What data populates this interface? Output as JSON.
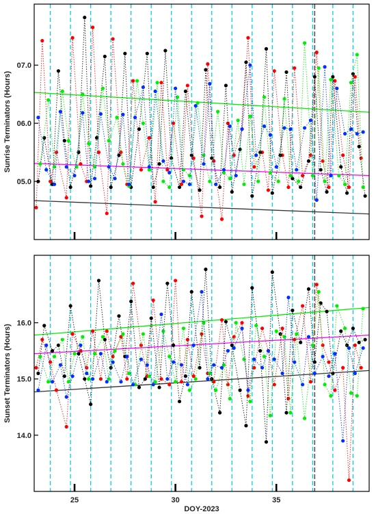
{
  "chart_data": [
    {
      "type": "scatter",
      "ylabel": "Sunrise Terminators (Hours)",
      "xlabel": "",
      "ylim": [
        4.0,
        8.05
      ],
      "xlim": [
        23.0,
        39.6
      ],
      "yticks": [
        5.0,
        6.0,
        7.0
      ],
      "ytick_labels": [
        "05.0",
        "06.0",
        "07.0"
      ],
      "xticks": [
        25,
        30,
        35
      ],
      "xtick_labels": [
        "",
        "",
        ""
      ],
      "colors": {
        "red": "#ff0000",
        "black": "#000000",
        "green": "#00ee00",
        "blue": "#0030ff"
      },
      "day_lines": [
        23.8,
        24.8,
        25.8,
        26.8,
        27.8,
        28.8,
        29.8,
        30.8,
        31.8,
        32.8,
        33.8,
        34.8,
        35.8,
        36.8,
        37.8,
        38.8
      ],
      "gray_line_x": 36.9,
      "trend_lines": [
        {
          "color": "#00ee00",
          "x": [
            23.0,
            39.6
          ],
          "y": [
            6.53,
            6.19
          ]
        },
        {
          "color": "#ff00ff",
          "x": [
            23.0,
            39.6
          ],
          "y": [
            5.31,
            5.1
          ]
        },
        {
          "color": "#333333",
          "x": [
            23.0,
            39.6
          ],
          "y": [
            4.67,
            4.44
          ]
        }
      ],
      "series": [
        {
          "color": "#ff0000",
          "x": [
            23.1,
            23.4,
            23.8,
            24.1,
            24.6,
            24.9,
            25.3,
            25.6,
            25.9,
            26.2,
            26.6,
            26.9,
            27.3,
            27.6,
            27.9,
            28.3,
            28.7,
            29.0,
            29.3,
            29.6,
            29.9,
            30.3,
            30.6,
            30.9,
            31.3,
            31.6,
            31.9,
            32.3,
            32.6,
            32.9,
            33.3,
            33.6,
            33.9,
            34.3,
            34.6,
            34.9,
            35.3,
            35.6,
            35.9,
            36.3,
            36.7,
            37.0,
            37.3,
            37.6,
            37.9,
            38.3,
            38.6,
            38.9,
            39.2
          ],
          "y": [
            4.55,
            7.42,
            5.0,
            5.5,
            4.72,
            7.47,
            5.3,
            5.0,
            7.65,
            5.5,
            4.45,
            7.45,
            5.5,
            4.95,
            6.73,
            5.2,
            5.75,
            4.65,
            6.7,
            5.2,
            6.0,
            4.95,
            6.65,
            5.4,
            4.4,
            7.02,
            5.35,
            4.35,
            6.0,
            5.45,
            5.9,
            7.47,
            5.25,
            5.5,
            4.85,
            6.9,
            5.45,
            4.9,
            6.95,
            5.1,
            5.45,
            7.22,
            5.35,
            4.9,
            6.73,
            5.45,
            4.9,
            6.8,
            5.4
          ]
        },
        {
          "color": "#000000",
          "x": [
            23.2,
            23.5,
            23.9,
            24.2,
            24.5,
            24.8,
            25.2,
            25.5,
            25.8,
            26.1,
            26.5,
            26.8,
            27.2,
            27.5,
            27.8,
            28.2,
            28.6,
            28.9,
            29.2,
            29.5,
            29.8,
            30.2,
            30.5,
            30.8,
            31.2,
            31.5,
            31.8,
            32.2,
            32.5,
            32.8,
            33.2,
            33.5,
            33.8,
            34.2,
            34.5,
            34.8,
            35.2,
            35.5,
            35.8,
            36.2,
            36.6,
            36.9,
            37.2,
            37.5,
            37.8,
            38.2,
            38.5,
            38.8,
            39.1,
            39.4
          ],
          "y": [
            5.0,
            5.75,
            4.95,
            6.9,
            5.7,
            4.9,
            5.5,
            7.82,
            4.92,
            5.75,
            7.15,
            4.9,
            5.45,
            7.2,
            4.9,
            5.9,
            7.2,
            4.9,
            5.3,
            7.25,
            5.4,
            4.9,
            6.55,
            5.45,
            4.85,
            6.92,
            5.4,
            4.9,
            6.65,
            4.82,
            5.55,
            7.05,
            4.75,
            5.5,
            7.28,
            4.8,
            5.45,
            6.88,
            5.05,
            4.9,
            5.35,
            6.8,
            5.2,
            4.82,
            6.8,
            5.25,
            4.8,
            6.85,
            5.6,
            4.75
          ]
        },
        {
          "color": "#00ee00",
          "x": [
            23.3,
            23.7,
            24.0,
            24.4,
            24.7,
            25.1,
            25.4,
            25.7,
            26.0,
            26.4,
            26.7,
            27.1,
            27.4,
            27.7,
            28.1,
            28.4,
            28.7,
            29.1,
            29.4,
            29.7,
            30.1,
            30.4,
            30.7,
            31.1,
            31.4,
            31.7,
            32.1,
            32.4,
            32.7,
            33.1,
            33.4,
            33.7,
            34.1,
            34.4,
            34.7,
            35.1,
            35.4,
            35.7,
            36.1,
            36.4,
            36.8,
            37.1,
            37.4,
            37.7,
            38.1,
            38.4,
            38.7,
            39.0,
            39.3
          ],
          "y": [
            5.3,
            6.4,
            5.25,
            6.55,
            5.7,
            5.25,
            6.5,
            5.65,
            5.25,
            6.6,
            5.7,
            6.1,
            5.3,
            4.92,
            6.73,
            6.0,
            5.2,
            6.7,
            5.0,
            4.9,
            6.45,
            5.2,
            5.1,
            6.35,
            5.45,
            5.0,
            6.2,
            5.15,
            5.05,
            6.05,
            4.95,
            6.12,
            5.0,
            6.45,
            5.15,
            5.0,
            6.42,
            5.1,
            5.0,
            7.38,
            5.1,
            6.95,
            5.0,
            6.75,
            5.1,
            4.95,
            6.7,
            7.18,
            4.9
          ]
        },
        {
          "color": "#0030ff",
          "x": [
            23.2,
            23.6,
            24.0,
            24.3,
            24.6,
            25.0,
            25.4,
            25.7,
            26.0,
            26.3,
            26.7,
            27.0,
            27.4,
            27.7,
            28.0,
            28.4,
            28.7,
            29.0,
            29.4,
            29.7,
            30.0,
            30.4,
            30.7,
            31.0,
            31.4,
            31.7,
            32.0,
            32.4,
            32.7,
            33.0,
            33.3,
            33.7,
            34.0,
            34.4,
            34.7,
            35.0,
            35.4,
            35.7,
            36.0,
            36.4,
            36.7,
            37.0,
            37.4,
            37.7,
            38.0,
            38.4,
            38.7,
            39.0,
            39.3
          ],
          "y": [
            6.1,
            5.2,
            4.95,
            6.2,
            5.25,
            5.1,
            6.18,
            5.0,
            5.05,
            6.16,
            5.25,
            5.05,
            6.15,
            4.95,
            6.1,
            6.62,
            5.25,
            6.55,
            5.35,
            5.15,
            6.6,
            5.0,
            4.95,
            6.3,
            5.3,
            6.68,
            4.95,
            5.2,
            5.95,
            5.1,
            5.9,
            7.0,
            5.45,
            5.95,
            5.8,
            5.25,
            5.92,
            5.9,
            5.2,
            5.92,
            6.05,
            4.68,
            6.97,
            5.1,
            6.6,
            5.82,
            5.9,
            5.82,
            5.85
          ]
        }
      ]
    },
    {
      "type": "scatter",
      "ylabel": "Sunset Terminators (Hours)",
      "xlabel": "DOY-2023",
      "ylim": [
        13.0,
        17.2
      ],
      "xlim": [
        23.0,
        39.6
      ],
      "yticks": [
        14.0,
        15.0,
        16.0
      ],
      "ytick_labels": [
        "14.0",
        "15.0",
        "16.0"
      ],
      "xticks": [
        25,
        30,
        35
      ],
      "xtick_labels": [
        "25",
        "30",
        "35"
      ],
      "colors": {
        "red": "#ff0000",
        "black": "#000000",
        "green": "#00ee00",
        "blue": "#0030ff"
      },
      "day_lines": [
        23.8,
        24.8,
        25.8,
        26.8,
        27.8,
        28.8,
        29.8,
        30.8,
        31.8,
        32.8,
        33.8,
        34.8,
        35.8,
        36.8,
        37.8,
        38.8
      ],
      "gray_line_x": 36.9,
      "trend_lines": [
        {
          "color": "#00ee00",
          "x": [
            23.0,
            39.6
          ],
          "y": [
            15.78,
            16.27
          ]
        },
        {
          "color": "#ff00ff",
          "x": [
            23.0,
            39.6
          ],
          "y": [
            15.45,
            15.78
          ]
        },
        {
          "color": "#333333",
          "x": [
            23.0,
            39.6
          ],
          "y": [
            14.77,
            15.15
          ]
        }
      ],
      "series": [
        {
          "color": "#ff0000",
          "x": [
            23.1,
            23.4,
            23.8,
            24.1,
            24.6,
            24.9,
            25.3,
            25.6,
            25.9,
            26.3,
            26.6,
            26.9,
            27.3,
            27.6,
            27.9,
            28.3,
            28.6,
            28.9,
            29.3,
            29.7,
            30.0,
            30.3,
            30.6,
            30.9,
            31.3,
            31.6,
            31.9,
            32.3,
            32.6,
            32.9,
            33.3,
            33.6,
            33.9,
            34.3,
            34.6,
            34.9,
            35.3,
            35.6,
            35.9,
            36.3,
            36.7,
            37.0,
            37.3,
            37.6,
            37.9,
            38.3,
            38.6,
            38.9,
            39.2
          ],
          "y": [
            15.2,
            15.7,
            15.3,
            14.8,
            14.15,
            15.8,
            15.5,
            15.2,
            15.85,
            15.0,
            15.85,
            15.4,
            15.75,
            15.0,
            16.7,
            15.6,
            15.05,
            16.4,
            15.0,
            14.9,
            16.75,
            14.95,
            15.7,
            15.05,
            15.8,
            15.1,
            14.95,
            16.05,
            14.9,
            15.75,
            16.0,
            14.7,
            15.2,
            15.9,
            15.5,
            14.9,
            15.9,
            14.65,
            15.7,
            16.3,
            14.95,
            16.68,
            15.6,
            15.3,
            14.8,
            15.2,
            13.2,
            15.6,
            15.2
          ]
        },
        {
          "color": "#000000",
          "x": [
            23.2,
            23.5,
            23.9,
            24.2,
            24.5,
            24.8,
            25.2,
            25.5,
            25.8,
            26.2,
            26.5,
            26.8,
            27.2,
            27.5,
            27.8,
            28.2,
            28.5,
            28.8,
            29.2,
            29.6,
            29.9,
            30.2,
            30.5,
            30.8,
            31.2,
            31.5,
            31.8,
            32.2,
            32.5,
            32.8,
            33.2,
            33.5,
            33.8,
            34.2,
            34.5,
            34.8,
            35.2,
            35.5,
            35.8,
            36.2,
            36.6,
            36.9,
            37.2,
            37.5,
            37.8,
            38.2,
            38.5,
            38.8,
            39.1,
            39.4
          ],
          "y": [
            15.1,
            15.95,
            15.5,
            15.6,
            15.05,
            16.3,
            15.45,
            15.0,
            14.55,
            16.75,
            15.7,
            15.2,
            16.12,
            15.4,
            16.38,
            14.85,
            15.0,
            16.08,
            14.85,
            16.7,
            15.6,
            14.6,
            15.05,
            16.55,
            15.2,
            16.95,
            15.0,
            14.4,
            16.02,
            15.6,
            14.8,
            14.17,
            16.62,
            15.5,
            13.88,
            16.9,
            15.8,
            14.4,
            16.22,
            15.65,
            16.6,
            15.3,
            16.35,
            16.2,
            15.1,
            15.85,
            15.6,
            15.9,
            15.65,
            15.7
          ]
        },
        {
          "color": "#00ee00",
          "x": [
            23.3,
            23.7,
            24.0,
            24.4,
            24.7,
            25.0,
            25.4,
            25.7,
            26.0,
            26.4,
            26.7,
            27.0,
            27.4,
            27.7,
            28.0,
            28.4,
            28.7,
            29.0,
            29.4,
            29.7,
            30.0,
            30.4,
            30.7,
            31.0,
            31.4,
            31.7,
            32.0,
            32.4,
            32.7,
            33.0,
            33.4,
            33.7,
            34.0,
            34.4,
            34.7,
            35.0,
            35.4,
            35.7,
            36.0,
            36.4,
            36.8,
            37.1,
            37.4,
            37.7,
            38.0,
            38.4,
            38.7,
            39.0,
            39.3
          ],
          "y": [
            15.4,
            14.95,
            15.4,
            15.7,
            14.95,
            15.45,
            15.75,
            15.0,
            15.45,
            15.75,
            15.0,
            15.5,
            15.8,
            15.1,
            14.9,
            15.8,
            15.05,
            14.95,
            15.85,
            15.4,
            14.95,
            15.9,
            14.8,
            15.0,
            16.0,
            15.1,
            14.8,
            15.25,
            14.65,
            16.0,
            15.35,
            14.6,
            15.95,
            15.4,
            14.35,
            15.85,
            15.75,
            14.4,
            15.8,
            14.3,
            15.6,
            16.55,
            14.9,
            14.7,
            16.3,
            15.9,
            14.75,
            14.7,
            16.25
          ]
        },
        {
          "color": "#0030ff",
          "x": [
            23.2,
            23.6,
            23.9,
            24.3,
            24.6,
            24.9,
            25.3,
            25.6,
            25.9,
            26.3,
            26.6,
            26.9,
            27.3,
            27.6,
            27.9,
            28.3,
            28.6,
            28.9,
            29.3,
            29.6,
            29.9,
            30.3,
            30.6,
            30.9,
            31.3,
            31.6,
            31.9,
            32.3,
            32.6,
            32.9,
            33.3,
            33.6,
            33.9,
            34.3,
            34.6,
            34.9,
            35.3,
            35.6,
            35.9,
            36.3,
            36.6,
            36.9,
            37.3,
            37.6,
            37.9,
            38.3,
            38.6,
            38.9,
            39.3
          ],
          "y": [
            14.8,
            15.6,
            14.95,
            15.25,
            14.68,
            15.05,
            15.6,
            15.1,
            15.0,
            15.45,
            14.95,
            15.3,
            14.95,
            15.4,
            14.9,
            15.35,
            15.25,
            14.9,
            16.15,
            15.0,
            15.3,
            15.25,
            14.9,
            15.6,
            16.55,
            15.0,
            15.25,
            15.2,
            15.5,
            15.55,
            15.9,
            14.8,
            15.35,
            15.2,
            15.5,
            15.35,
            15.1,
            16.45,
            15.3,
            14.9,
            15.75,
            15.1,
            15.4,
            15.05,
            15.45,
            13.9,
            15.55,
            15.1,
            15.55
          ]
        }
      ]
    }
  ]
}
